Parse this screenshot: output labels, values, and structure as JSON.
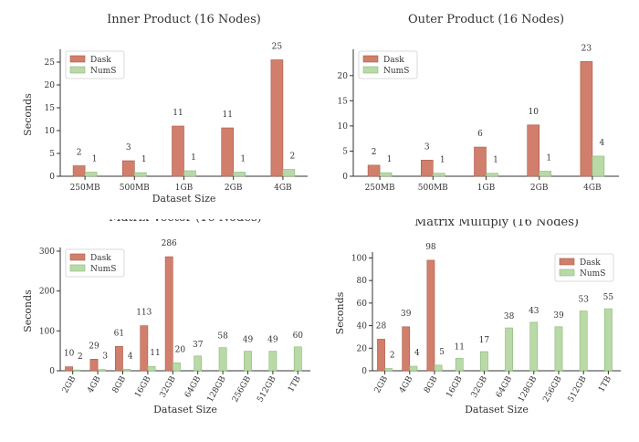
{
  "colors": {
    "dask": "#d17f6c",
    "dask_edge": "#a85a48",
    "nums": "#b9d9a7",
    "nums_edge": "#8ab87a",
    "axis": "#333333"
  },
  "chart_data": [
    {
      "type": "bar",
      "title": "Inner Product (16 Nodes)",
      "xlabel": "Dataset Size",
      "ylabel": "Seconds",
      "categories": [
        "250MB",
        "500MB",
        "1GB",
        "2GB",
        "4GB"
      ],
      "series": [
        {
          "name": "Dask",
          "values": [
            2.3,
            3.4,
            11.0,
            10.6,
            25.5
          ],
          "labels": [
            "2",
            "3",
            "11",
            "11",
            "25"
          ]
        },
        {
          "name": "NumS",
          "values": [
            0.9,
            0.8,
            1.2,
            0.9,
            1.5
          ],
          "labels": [
            "1",
            "1",
            "1",
            "1",
            "2"
          ]
        }
      ],
      "ylim": [
        0,
        27
      ],
      "yticks": [
        0,
        5,
        10,
        15,
        20,
        25
      ],
      "legend": "top-left",
      "grid": false,
      "rotate_xticks": false
    },
    {
      "type": "bar",
      "title": "Outer Product (16 Nodes)",
      "xlabel": "",
      "ylabel": "",
      "categories": [
        "250MB",
        "500MB",
        "1GB",
        "2GB",
        "4GB"
      ],
      "series": [
        {
          "name": "Dask",
          "values": [
            2.2,
            3.2,
            5.8,
            10.2,
            22.8
          ],
          "labels": [
            "2",
            "3",
            "6",
            "10",
            "23"
          ]
        },
        {
          "name": "NumS",
          "values": [
            0.7,
            0.6,
            0.6,
            1.0,
            4.0
          ],
          "labels": [
            "1",
            "1",
            "1",
            "1",
            "4"
          ]
        }
      ],
      "ylim": [
        0,
        24.5
      ],
      "yticks": [
        0,
        5,
        10,
        15,
        20
      ],
      "legend": "top-left",
      "grid": false,
      "rotate_xticks": false
    },
    {
      "type": "bar",
      "title": "Matrix Vector (16 Nodes)",
      "xlabel": "Dataset Size",
      "ylabel": "Seconds",
      "categories": [
        "2GB",
        "4GB",
        "8GB",
        "16GB",
        "32GB",
        "64GB",
        "128GB",
        "256GB",
        "512GB",
        "1TB"
      ],
      "series": [
        {
          "name": "Dask",
          "values": [
            10,
            29,
            61,
            113,
            286,
            null,
            null,
            null,
            null,
            null
          ],
          "labels": [
            "10",
            "29",
            "61",
            "113",
            "286",
            "",
            "",
            "",
            "",
            ""
          ]
        },
        {
          "name": "NumS",
          "values": [
            2,
            3,
            4,
            11,
            20,
            37,
            58,
            49,
            49,
            60
          ],
          "labels": [
            "2",
            "3",
            "4",
            "11",
            "20",
            "37",
            "58",
            "49",
            "49",
            "60"
          ]
        }
      ],
      "ylim": [
        0,
        300
      ],
      "yticks": [
        0,
        100,
        200,
        300
      ],
      "legend": "top-left",
      "grid": false,
      "rotate_xticks": true
    },
    {
      "type": "bar",
      "title": "Matrix Multiply (16 Nodes)",
      "xlabel": "Dataset Size",
      "ylabel": "Seconds",
      "categories": [
        "2GB",
        "4GB",
        "8GB",
        "16GB",
        "32GB",
        "64GB",
        "128GB",
        "256GB",
        "512GB",
        "1TB"
      ],
      "series": [
        {
          "name": "Dask",
          "values": [
            28,
            39,
            98,
            null,
            null,
            null,
            null,
            null,
            null,
            null
          ],
          "labels": [
            "28",
            "39",
            "98",
            "",
            "",
            "",
            "",
            "",
            "",
            ""
          ]
        },
        {
          "name": "NumS",
          "values": [
            2,
            4,
            5,
            11,
            17,
            38,
            43,
            39,
            53,
            55
          ],
          "labels": [
            "2",
            "4",
            "5",
            "11",
            "17",
            "38",
            "43",
            "39",
            "53",
            "55"
          ]
        }
      ],
      "ylim": [
        0,
        102
      ],
      "yticks": [
        0,
        20,
        40,
        60,
        80,
        100
      ],
      "legend": "top-right",
      "grid": false,
      "rotate_xticks": true
    }
  ]
}
